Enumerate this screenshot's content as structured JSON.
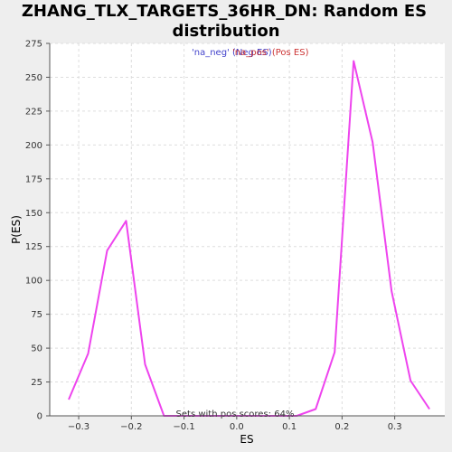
{
  "chart_data": {
    "type": "line",
    "title_line1": "ZHANG_TLX_TARGETS_36HR_DN: Random ES",
    "title_line2": "distribution",
    "xlabel": "ES",
    "ylabel": "P(ES)",
    "xlim": [
      -0.355,
      0.395
    ],
    "ylim": [
      0,
      275
    ],
    "xticks": [
      -0.3,
      -0.2,
      -0.1,
      0.0,
      0.1,
      0.2,
      0.3
    ],
    "xtick_labels": [
      "−0.3",
      "−0.2",
      "−0.1",
      "0.0",
      "0.1",
      "0.2",
      "0.3"
    ],
    "yticks": [
      0,
      25,
      50,
      75,
      100,
      125,
      150,
      175,
      200,
      225,
      250,
      275
    ],
    "grid": true,
    "legend": {
      "placement": "top-center",
      "entries": [
        {
          "label": "'na_neg' (Neg ES)",
          "color": "#4444cc"
        },
        {
          "label": "'na_pos' (Pos ES)",
          "color": "#cc3333"
        }
      ]
    },
    "annotation": "Sets with pos scores: 64%",
    "series": [
      {
        "color": "#ee44ee",
        "x": [
          -0.319,
          -0.282,
          -0.246,
          -0.21,
          -0.174,
          -0.138,
          -0.102,
          -0.066,
          -0.03,
          0.006,
          0.042,
          0.078,
          0.114,
          0.15,
          0.186,
          0.222,
          0.258,
          0.294,
          0.33,
          0.366
        ],
        "y": [
          12,
          46,
          122,
          144,
          38,
          0,
          0,
          0,
          0,
          0,
          0,
          0,
          0,
          5,
          47,
          262,
          202,
          92,
          26,
          5
        ]
      }
    ]
  }
}
